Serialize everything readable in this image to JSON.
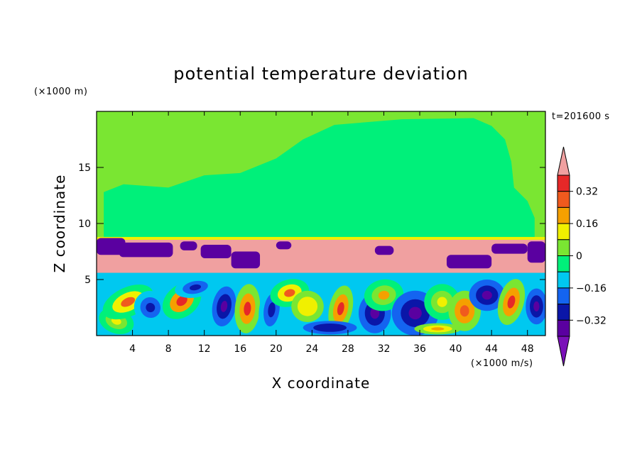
{
  "chart_data": {
    "type": "heatmap",
    "title": "potential temperature deviation",
    "xlabel": "X coordinate",
    "ylabel": "Z coordinate",
    "x_units": "(×1000 m/s)",
    "y_units": "(×1000 m)",
    "time_label": "t=201600 s",
    "xlim": [
      0,
      50
    ],
    "ylim": [
      0,
      20
    ],
    "x_ticks": [
      "4",
      "8",
      "12",
      "16",
      "20",
      "24",
      "28",
      "32",
      "36",
      "40",
      "44",
      "48"
    ],
    "y_ticks": [
      "5",
      "10",
      "15"
    ],
    "colorbar": {
      "tick_labels": [
        "0.32",
        "0.16",
        "0",
        "−0.16",
        "−0.32"
      ],
      "levels": [
        -0.4,
        -0.32,
        -0.24,
        -0.16,
        -0.08,
        0,
        0.08,
        0.16,
        0.24,
        0.32,
        0.4
      ],
      "colors": [
        "#7a10b8",
        "#5a00a0",
        "#0a16a8",
        "#1464f0",
        "#00c8f0",
        "#00f07a",
        "#7ae632",
        "#f0f000",
        "#f5a000",
        "#f05a1e",
        "#e62828",
        "#f0a0a0"
      ]
    },
    "layers": [
      {
        "name": "upper",
        "z_range": [
          8.7,
          20
        ],
        "value": "~0 (0 to 0.08 above, -0.08 to 0 in large plumes)"
      },
      {
        "name": "inversion",
        "z_range": [
          5.5,
          8.7
        ],
        "value": ">0.4 with patches < -0.4"
      },
      {
        "name": "lower",
        "z_range": [
          0,
          5.5
        ],
        "value": "turbulent eddies, -0.4 to 0.4"
      }
    ]
  }
}
